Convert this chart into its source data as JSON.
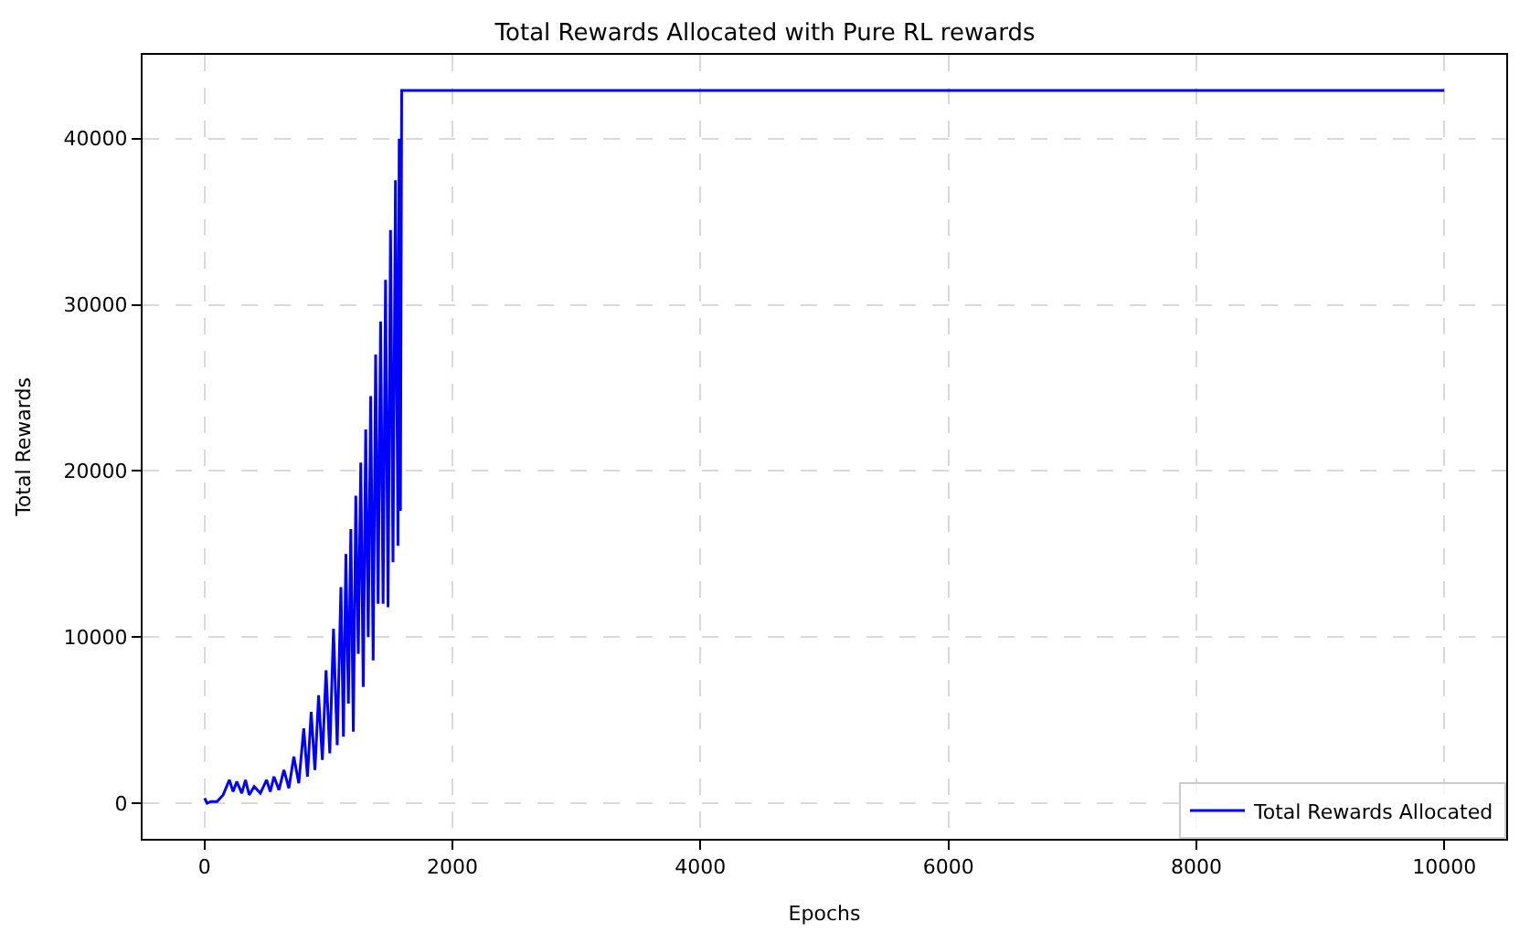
{
  "chart_data": {
    "type": "line",
    "title": "Total Rewards Allocated with Pure RL rewards",
    "xlabel": "Epochs",
    "ylabel": "Total Rewards",
    "x": [
      0,
      20,
      50,
      100,
      150,
      200,
      230,
      260,
      300,
      330,
      360,
      400,
      450,
      500,
      530,
      560,
      600,
      640,
      680,
      720,
      760,
      800,
      830,
      860,
      890,
      920,
      950,
      980,
      1010,
      1040,
      1070,
      1100,
      1120,
      1140,
      1160,
      1180,
      1200,
      1220,
      1240,
      1260,
      1280,
      1300,
      1320,
      1340,
      1360,
      1380,
      1400,
      1420,
      1440,
      1460,
      1480,
      1500,
      1520,
      1540,
      1560,
      1570,
      1580,
      1590,
      10000
    ],
    "series": [
      {
        "name": "Total Rewards Allocated",
        "color": "#0000ff",
        "values": [
          300,
          0,
          100,
          100,
          500,
          1400,
          700,
          1300,
          600,
          1400,
          500,
          1000,
          600,
          1400,
          700,
          1600,
          800,
          2000,
          900,
          2800,
          1200,
          4500,
          1600,
          5500,
          2000,
          6500,
          2600,
          8000,
          3000,
          10500,
          3500,
          13000,
          4000,
          15000,
          6000,
          16500,
          4300,
          18500,
          9000,
          20500,
          7000,
          22500,
          10000,
          24500,
          8600,
          27000,
          12000,
          29000,
          12000,
          31500,
          11800,
          34500,
          14500,
          37500,
          15500,
          40000,
          17600,
          42900,
          42900
        ]
      }
    ],
    "xlim": [
      -500,
      10500
    ],
    "xticks": [
      0,
      2000,
      4000,
      6000,
      8000,
      10000
    ],
    "ylim": [
      -2145,
      45045
    ],
    "yticks": [
      0,
      10000,
      20000,
      30000,
      40000
    ],
    "grid": true,
    "legend": "bottom right",
    "line_style": "solid",
    "marker": "none"
  }
}
